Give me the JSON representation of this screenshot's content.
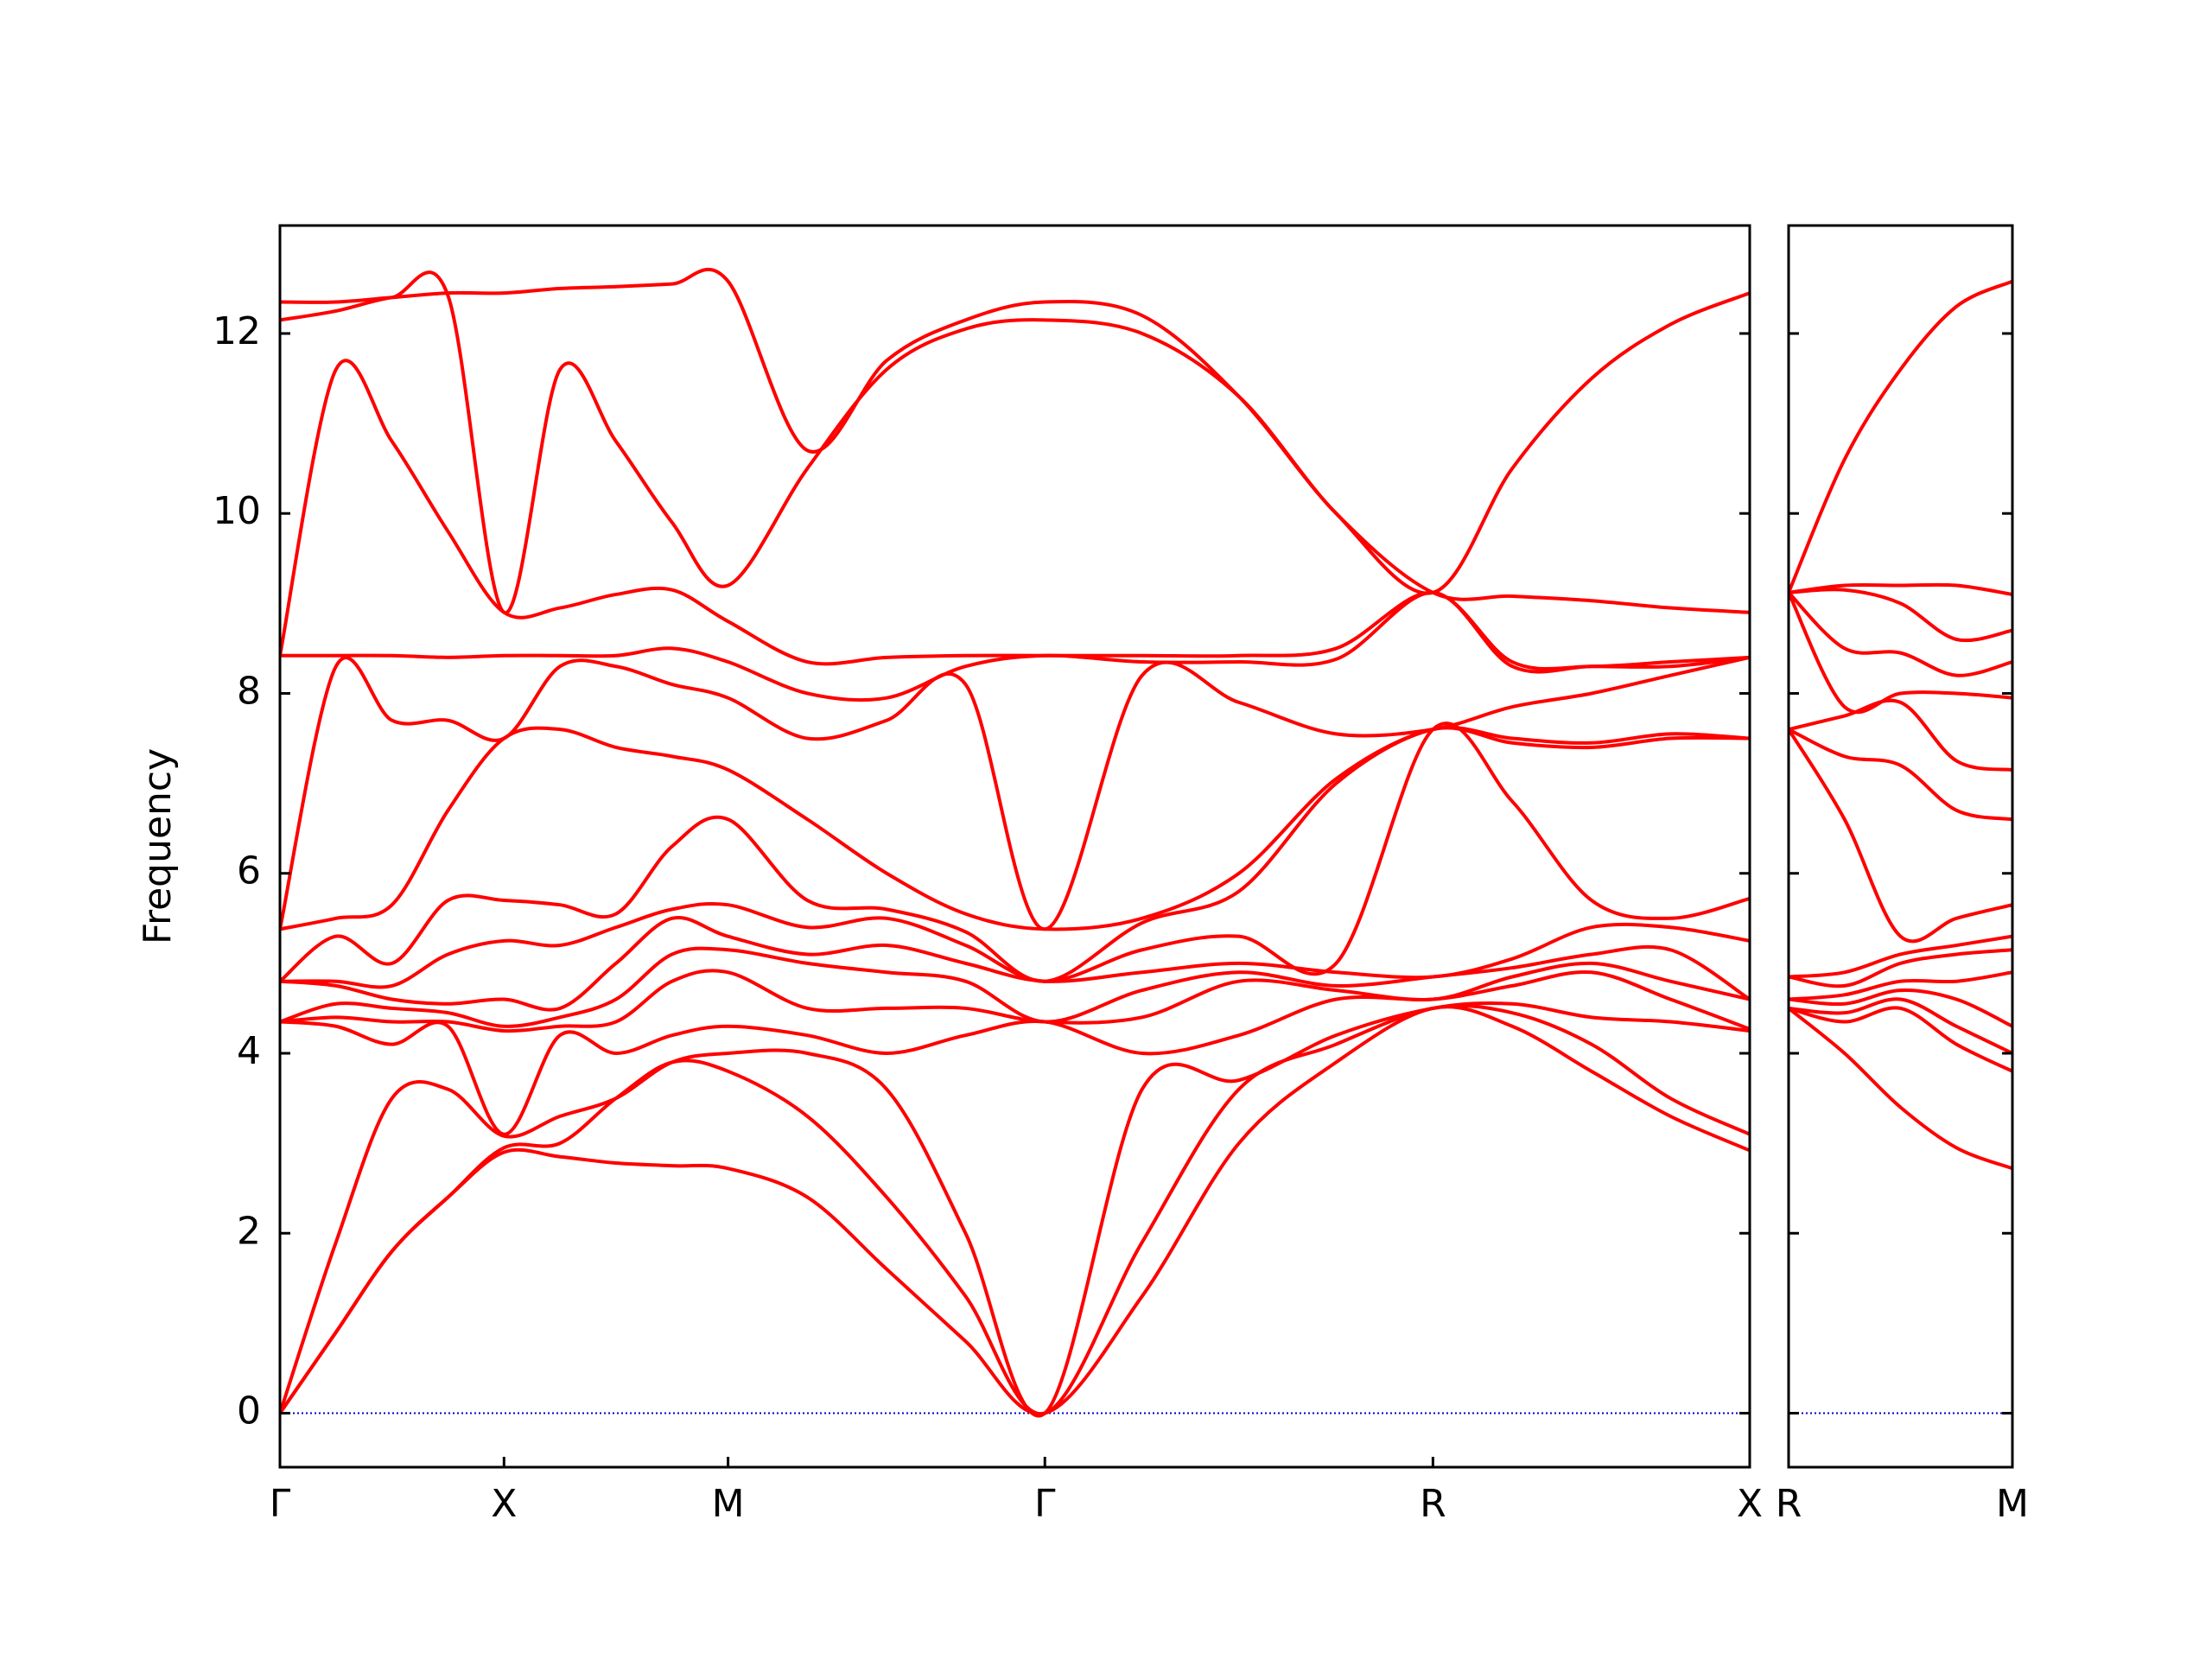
{
  "chart_data": [
    {
      "type": "line",
      "ylabel": "Frequency",
      "xlim": [
        0,
        3.28
      ],
      "ylim": [
        -0.6,
        13.2
      ],
      "xticks": [
        {
          "value": 0,
          "label": "Γ"
        },
        {
          "value": 0.5,
          "label": "X"
        },
        {
          "value": 1.0,
          "label": "M"
        },
        {
          "value": 1.707,
          "label": "Γ"
        },
        {
          "value": 2.573,
          "label": "R"
        },
        {
          "value": 3.28,
          "label": "X"
        }
      ],
      "yticks": [
        0,
        2,
        4,
        6,
        8,
        10,
        12
      ],
      "zero_line": {
        "y": 0,
        "color": "#0000cd"
      },
      "x": [
        0,
        0.125,
        0.25,
        0.375,
        0.5,
        0.625,
        0.75,
        0.875,
        1.0,
        1.177,
        1.354,
        1.53,
        1.707,
        1.924,
        2.14,
        2.357,
        2.573,
        2.75,
        2.927,
        3.103,
        3.28
      ],
      "series": [
        {
          "color": "#ff0000",
          "values": [
            0,
            0.9,
            1.8,
            2.4,
            2.9,
            2.85,
            2.78,
            2.75,
            2.72,
            2.4,
            1.6,
            0.8,
            0,
            1.3,
            3.0,
            3.9,
            4.5,
            4.3,
            3.8,
            3.3,
            2.92
          ]
        },
        {
          "color": "#ff0000",
          "values": [
            0,
            0.9,
            1.8,
            2.4,
            2.95,
            3.0,
            3.5,
            3.9,
            3.8,
            3.3,
            2.4,
            1.3,
            0,
            1.9,
            3.6,
            4.1,
            4.5,
            4.45,
            4.1,
            3.5,
            3.1
          ]
        },
        {
          "color": "#ff0000",
          "values": [
            0,
            1.9,
            3.5,
            3.6,
            3.08,
            3.3,
            3.5,
            3.9,
            4.0,
            4.0,
            3.6,
            2.0,
            0,
            3.6,
            3.7,
            4.2,
            4.5,
            4.55,
            4.4,
            4.35,
            4.25
          ]
        },
        {
          "color": "#ff0000",
          "values": [
            4.35,
            4.3,
            4.1,
            4.3,
            3.1,
            4.2,
            4.0,
            4.2,
            4.3,
            4.2,
            4.0,
            4.2,
            4.35,
            4.0,
            4.2,
            4.6,
            4.6,
            4.75,
            4.9,
            4.6,
            4.27
          ]
        },
        {
          "color": "#ff0000",
          "values": [
            4.35,
            4.4,
            4.35,
            4.35,
            4.25,
            4.3,
            4.35,
            4.8,
            4.9,
            4.5,
            4.5,
            4.5,
            4.35,
            4.4,
            4.8,
            4.7,
            4.6,
            4.85,
            5.0,
            4.8,
            4.6
          ]
        },
        {
          "color": "#ff0000",
          "values": [
            4.35,
            4.55,
            4.5,
            4.45,
            4.3,
            4.4,
            4.6,
            5.1,
            5.15,
            5.0,
            4.9,
            4.8,
            4.35,
            4.7,
            4.9,
            4.75,
            4.85,
            4.95,
            5.1,
            5.15,
            4.6
          ]
        },
        {
          "color": "#ff0000",
          "values": [
            4.8,
            4.75,
            4.6,
            4.55,
            4.6,
            4.5,
            5.0,
            5.5,
            5.3,
            5.1,
            5.2,
            5.0,
            4.8,
            4.9,
            5.0,
            4.9,
            4.85,
            5.05,
            5.4,
            5.4,
            5.25
          ]
        },
        {
          "color": "#ff0000",
          "values": [
            4.8,
            4.8,
            4.75,
            5.1,
            5.25,
            5.2,
            5.4,
            5.6,
            5.65,
            5.4,
            5.5,
            5.2,
            4.8,
            5.15,
            5.3,
            5.0,
            7.6,
            6.8,
            5.7,
            5.5,
            5.72
          ]
        },
        {
          "color": "#ff0000",
          "values": [
            4.8,
            5.3,
            5.0,
            5.7,
            5.7,
            5.65,
            5.55,
            6.3,
            6.6,
            5.7,
            5.6,
            5.35,
            4.8,
            5.45,
            5.8,
            7.0,
            7.6,
            7.45,
            7.4,
            7.5,
            7.5
          ]
        },
        {
          "color": "#ff0000",
          "values": [
            5.38,
            5.5,
            5.65,
            6.7,
            7.5,
            7.6,
            7.4,
            7.3,
            7.15,
            6.6,
            6.0,
            5.55,
            5.38,
            5.5,
            6.0,
            7.05,
            7.6,
            7.5,
            7.45,
            7.55,
            7.5
          ]
        },
        {
          "color": "#ff0000",
          "values": [
            5.38,
            8.3,
            7.7,
            7.7,
            7.5,
            8.3,
            8.3,
            8.1,
            7.95,
            7.5,
            7.7,
            8.1,
            5.38,
            8.2,
            7.9,
            7.55,
            7.6,
            7.85,
            8.0,
            8.2,
            8.4
          ]
        },
        {
          "color": "#ff0000",
          "values": [
            8.42,
            8.42,
            8.42,
            8.4,
            8.42,
            8.42,
            8.42,
            8.5,
            8.35,
            8.0,
            7.95,
            8.3,
            8.42,
            8.35,
            8.35,
            8.38,
            9.12,
            8.3,
            8.3,
            8.3,
            8.4
          ]
        },
        {
          "color": "#ff0000",
          "values": [
            8.42,
            11.6,
            10.8,
            9.8,
            8.9,
            8.95,
            9.1,
            9.15,
            8.8,
            8.35,
            8.4,
            8.42,
            8.42,
            8.42,
            8.42,
            8.5,
            9.12,
            8.35,
            8.3,
            8.35,
            8.4
          ]
        },
        {
          "color": "#ff0000",
          "values": [
            12.15,
            12.25,
            12.4,
            12.42,
            8.9,
            11.6,
            10.8,
            9.9,
            9.2,
            10.5,
            11.6,
            12.05,
            12.15,
            12.0,
            11.3,
            10.0,
            9.12,
            9.08,
            9.03,
            8.95,
            8.9
          ]
        },
        {
          "color": "#ff0000",
          "values": [
            12.35,
            12.35,
            12.4,
            12.45,
            12.45,
            12.5,
            12.52,
            12.55,
            12.58,
            10.7,
            11.7,
            12.15,
            12.35,
            12.2,
            11.3,
            10.0,
            9.12,
            10.5,
            11.5,
            12.1,
            12.45
          ]
        }
      ]
    },
    {
      "type": "line",
      "xlim": [
        0,
        0.5
      ],
      "ylim": [
        -0.6,
        13.2
      ],
      "xticks": [
        {
          "value": 0,
          "label": "R"
        },
        {
          "value": 0.5,
          "label": "M"
        }
      ],
      "yticks": [
        0,
        2,
        4,
        6,
        8,
        10,
        12
      ],
      "ytick_labels": false,
      "zero_line": {
        "y": 0,
        "color": "#0000cd"
      },
      "x": [
        0,
        0.125,
        0.25,
        0.375,
        0.5
      ],
      "series": [
        {
          "color": "#ff0000",
          "values": [
            4.5,
            4.0,
            3.4,
            2.95,
            2.72
          ]
        },
        {
          "color": "#ff0000",
          "values": [
            4.5,
            4.35,
            4.5,
            4.1,
            3.8
          ]
        },
        {
          "color": "#ff0000",
          "values": [
            4.5,
            4.45,
            4.6,
            4.3,
            4.0
          ]
        },
        {
          "color": "#ff0000",
          "values": [
            4.6,
            4.55,
            4.7,
            4.6,
            4.3
          ]
        },
        {
          "color": "#ff0000",
          "values": [
            4.6,
            4.65,
            4.8,
            4.8,
            4.9
          ]
        },
        {
          "color": "#ff0000",
          "values": [
            4.85,
            4.75,
            5.0,
            5.1,
            5.15
          ]
        },
        {
          "color": "#ff0000",
          "values": [
            4.85,
            4.9,
            5.1,
            5.2,
            5.3
          ]
        },
        {
          "color": "#ff0000",
          "values": [
            7.6,
            6.6,
            5.3,
            5.5,
            5.65
          ]
        },
        {
          "color": "#ff0000",
          "values": [
            7.6,
            7.3,
            7.2,
            6.7,
            6.6
          ]
        },
        {
          "color": "#ff0000",
          "values": [
            7.6,
            7.75,
            7.9,
            7.25,
            7.15
          ]
        },
        {
          "color": "#ff0000",
          "values": [
            9.12,
            7.85,
            8.0,
            8.0,
            7.95
          ]
        },
        {
          "color": "#ff0000",
          "values": [
            9.12,
            8.5,
            8.45,
            8.2,
            8.35
          ]
        },
        {
          "color": "#ff0000",
          "values": [
            9.12,
            9.15,
            9.0,
            8.6,
            8.7
          ]
        },
        {
          "color": "#ff0000",
          "values": [
            9.12,
            9.2,
            9.2,
            9.2,
            9.1
          ]
        },
        {
          "color": "#ff0000",
          "values": [
            9.12,
            10.6,
            11.6,
            12.3,
            12.58
          ]
        }
      ]
    }
  ]
}
